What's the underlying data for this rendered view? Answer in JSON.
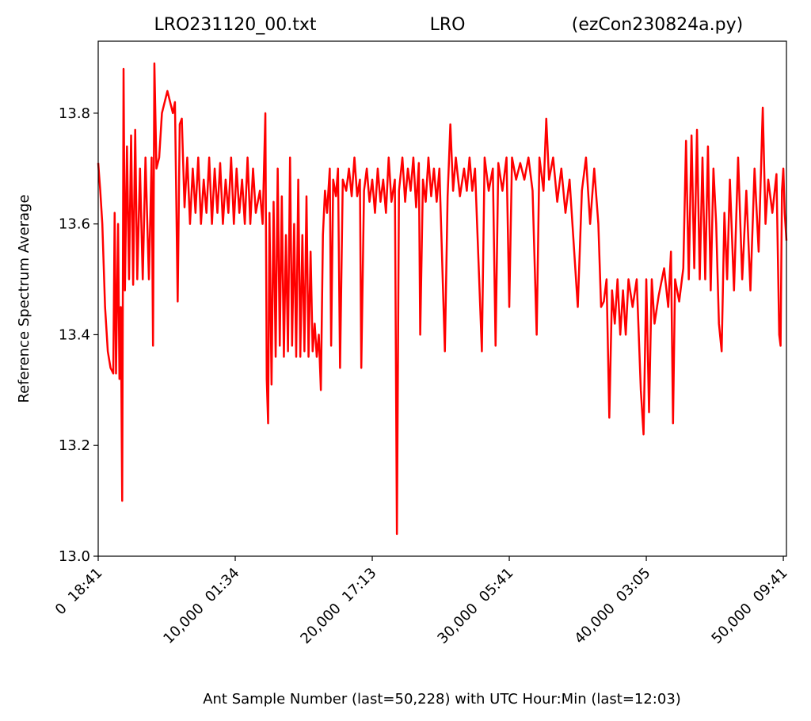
{
  "chart_data": {
    "type": "line",
    "title_left": "LRO231120_00.txt",
    "title": "LRO",
    "title_right": "(ezCon230824a.py)",
    "xlabel": "Ant Sample Number (last=50,228) with UTC Hour:Min (last=12:03)",
    "ylabel": "Reference Spectrum Average",
    "color": "#ff0000",
    "xlim": [
      0,
      50228
    ],
    "ylim": [
      13.0,
      13.93
    ],
    "xticks": [
      {
        "value": 0,
        "label": "0  18:41"
      },
      {
        "value": 10000,
        "label": "10,000  01:34"
      },
      {
        "value": 20000,
        "label": "20,000  17:13"
      },
      {
        "value": 30000,
        "label": "30,000  05:41"
      },
      {
        "value": 40000,
        "label": "40,000  03:05"
      },
      {
        "value": 50000,
        "label": "50,000  09:41"
      }
    ],
    "yticks": [
      {
        "value": 13,
        "label": "13.0"
      },
      13.2,
      13.4,
      13.6,
      13.8
    ],
    "x": [
      0,
      150,
      300,
      500,
      700,
      900,
      1100,
      1200,
      1300,
      1450,
      1550,
      1650,
      1750,
      1850,
      1950,
      2100,
      2250,
      2400,
      2550,
      2700,
      2850,
      3050,
      3250,
      3450,
      3700,
      3900,
      4000,
      4100,
      4250,
      4450,
      4650,
      4850,
      5050,
      5250,
      5450,
      5600,
      5800,
      5950,
      6100,
      6300,
      6500,
      6700,
      6900,
      7100,
      7300,
      7500,
      7700,
      7900,
      8100,
      8300,
      8500,
      8700,
      8900,
      9100,
      9300,
      9500,
      9700,
      9900,
      10100,
      10300,
      10500,
      10700,
      10900,
      11100,
      11300,
      11500,
      11800,
      12000,
      12200,
      12300,
      12400,
      12500,
      12650,
      12800,
      12950,
      13100,
      13250,
      13400,
      13550,
      13700,
      13850,
      14000,
      14150,
      14300,
      14450,
      14600,
      14750,
      14900,
      15050,
      15200,
      15350,
      15500,
      15650,
      15800,
      15950,
      16100,
      16250,
      16400,
      16550,
      16700,
      16900,
      17000,
      17150,
      17350,
      17500,
      17650,
      17850,
      18100,
      18300,
      18500,
      18700,
      18900,
      19100,
      19200,
      19400,
      19600,
      19800,
      20000,
      20200,
      20400,
      20600,
      20800,
      21000,
      21200,
      21400,
      21650,
      21800,
      21950,
      22200,
      22400,
      22600,
      22800,
      23000,
      23200,
      23400,
      23500,
      23700,
      23900,
      24100,
      24300,
      24500,
      24700,
      24900,
      25300,
      25500,
      25700,
      25900,
      26100,
      26400,
      26700,
      26900,
      27100,
      27300,
      27500,
      28000,
      28200,
      28500,
      28800,
      29000,
      29200,
      29500,
      29800,
      30000,
      30200,
      30500,
      30800,
      31100,
      31400,
      31700,
      32000,
      32200,
      32500,
      32700,
      32900,
      33200,
      33500,
      33800,
      34100,
      34400,
      35000,
      35300,
      35600,
      35900,
      36200,
      36500,
      36700,
      36900,
      37100,
      37300,
      37500,
      37700,
      37900,
      38100,
      38300,
      38500,
      38700,
      39000,
      39300,
      39600,
      39800,
      40000,
      40200,
      40400,
      40600,
      40900,
      41300,
      41600,
      41800,
      41950,
      42100,
      42400,
      42700,
      42900,
      43100,
      43300,
      43500,
      43700,
      43900,
      44100,
      44300,
      44500,
      44700,
      44900,
      45100,
      45300,
      45500,
      45700,
      45900,
      46100,
      46400,
      46700,
      47000,
      47300,
      47600,
      47900,
      48200,
      48500,
      48700,
      48900,
      49200,
      49500,
      49700,
      49800,
      49900,
      50000,
      50100,
      50228
    ],
    "values": [
      13.71,
      13.66,
      13.6,
      13.45,
      13.37,
      13.34,
      13.33,
      13.62,
      13.33,
      13.6,
      13.32,
      13.45,
      13.1,
      13.88,
      13.48,
      13.74,
      13.5,
      13.76,
      13.49,
      13.77,
      13.5,
      13.7,
      13.5,
      13.72,
      13.5,
      13.72,
      13.38,
      13.89,
      13.7,
      13.72,
      13.8,
      13.82,
      13.84,
      13.82,
      13.8,
      13.82,
      13.46,
      13.78,
      13.79,
      13.63,
      13.72,
      13.6,
      13.7,
      13.62,
      13.72,
      13.6,
      13.68,
      13.62,
      13.72,
      13.6,
      13.7,
      13.62,
      13.71,
      13.6,
      13.68,
      13.62,
      13.72,
      13.6,
      13.7,
      13.62,
      13.68,
      13.6,
      13.72,
      13.6,
      13.7,
      13.62,
      13.66,
      13.6,
      13.8,
      13.32,
      13.24,
      13.62,
      13.31,
      13.64,
      13.36,
      13.7,
      13.38,
      13.65,
      13.36,
      13.58,
      13.37,
      13.72,
      13.38,
      13.6,
      13.36,
      13.68,
      13.36,
      13.58,
      13.37,
      13.65,
      13.36,
      13.55,
      13.37,
      13.42,
      13.36,
      13.4,
      13.3,
      13.58,
      13.66,
      13.62,
      13.7,
      13.38,
      13.68,
      13.65,
      13.7,
      13.34,
      13.68,
      13.66,
      13.7,
      13.65,
      13.72,
      13.65,
      13.68,
      13.34,
      13.66,
      13.7,
      13.64,
      13.68,
      13.62,
      13.7,
      13.64,
      13.68,
      13.62,
      13.72,
      13.64,
      13.68,
      13.04,
      13.66,
      13.72,
      13.64,
      13.7,
      13.66,
      13.72,
      13.63,
      13.71,
      13.4,
      13.68,
      13.64,
      13.72,
      13.65,
      13.7,
      13.64,
      13.7,
      13.37,
      13.65,
      13.78,
      13.66,
      13.72,
      13.65,
      13.7,
      13.66,
      13.72,
      13.66,
      13.7,
      13.37,
      13.72,
      13.66,
      13.7,
      13.38,
      13.71,
      13.66,
      13.72,
      13.45,
      13.72,
      13.68,
      13.71,
      13.68,
      13.72,
      13.66,
      13.4,
      13.72,
      13.66,
      13.79,
      13.68,
      13.72,
      13.64,
      13.7,
      13.62,
      13.68,
      13.45,
      13.66,
      13.72,
      13.6,
      13.7,
      13.6,
      13.45,
      13.46,
      13.5,
      13.25,
      13.48,
      13.42,
      13.5,
      13.4,
      13.48,
      13.4,
      13.5,
      13.45,
      13.5,
      13.3,
      13.22,
      13.5,
      13.26,
      13.5,
      13.42,
      13.47,
      13.52,
      13.45,
      13.55,
      13.24,
      13.5,
      13.46,
      13.52,
      13.75,
      13.5,
      13.76,
      13.52,
      13.77,
      13.5,
      13.72,
      13.5,
      13.74,
      13.48,
      13.7,
      13.6,
      13.42,
      13.37,
      13.62,
      13.5,
      13.68,
      13.48,
      13.72,
      13.5,
      13.66,
      13.48,
      13.7,
      13.55,
      13.81,
      13.6,
      13.68,
      13.62,
      13.69,
      13.4,
      13.38,
      13.66,
      13.7,
      13.62,
      13.57
    ]
  }
}
